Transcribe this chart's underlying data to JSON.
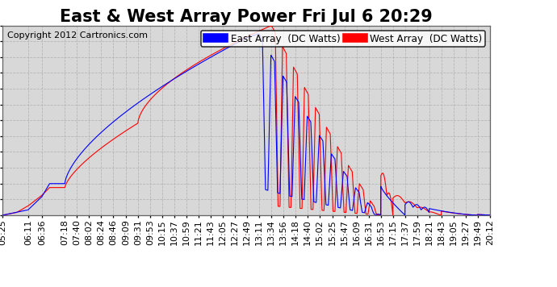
{
  "title": "East & West Array Power Fri Jul 6 20:29",
  "copyright": "Copyright 2012 Cartronics.com",
  "legend_east": "East Array  (DC Watts)",
  "legend_west": "West Array  (DC Watts)",
  "east_color": "#0000ff",
  "west_color": "#ff0000",
  "background_color": "#ffffff",
  "grid_color": "#b0b0b0",
  "plot_bg_color": "#d8d8d8",
  "ylim": [
    0.0,
    1443.1
  ],
  "yticks": [
    0.0,
    120.3,
    240.5,
    360.8,
    481.0,
    601.3,
    721.6,
    841.8,
    962.1,
    1082.3,
    1202.6,
    1322.9,
    1443.1
  ],
  "xtick_labels": [
    "05:25",
    "06:11",
    "06:36",
    "07:18",
    "07:40",
    "08:02",
    "08:24",
    "08:46",
    "09:09",
    "09:31",
    "09:53",
    "10:15",
    "10:37",
    "10:59",
    "11:21",
    "11:43",
    "12:05",
    "12:27",
    "12:49",
    "13:11",
    "13:34",
    "13:56",
    "14:18",
    "14:40",
    "15:02",
    "15:25",
    "15:47",
    "16:09",
    "16:31",
    "16:53",
    "17:15",
    "17:37",
    "17:59",
    "18:21",
    "18:43",
    "19:05",
    "19:27",
    "19:49",
    "20:12"
  ],
  "title_fontsize": 13,
  "tick_fontsize": 7,
  "copyright_fontsize": 7,
  "legend_fontsize": 7.5
}
